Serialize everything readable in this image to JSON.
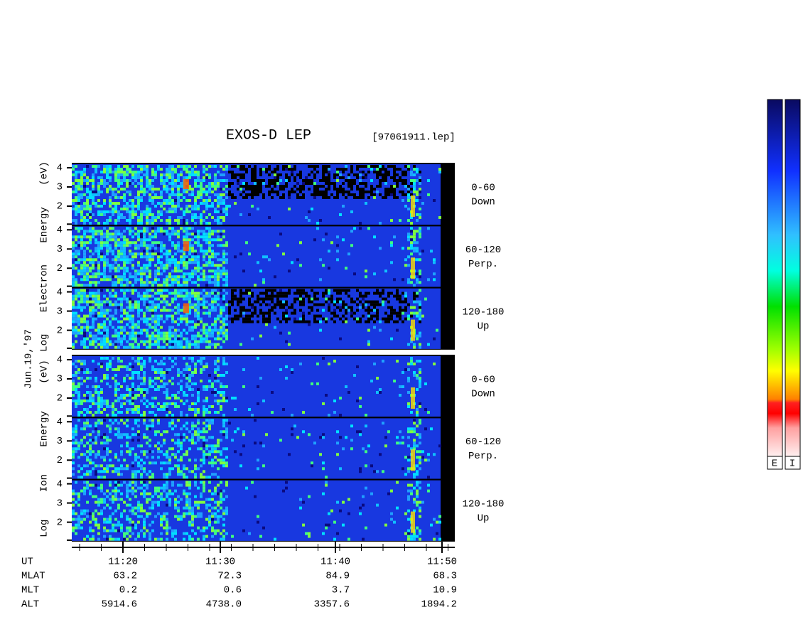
{
  "header": {
    "title": "EXOS-D LEP",
    "file": "[97061911.lep]"
  },
  "date": "Jun.19,'97",
  "groups": [
    {
      "axis_label": "Log Electron Energy (eV)",
      "panels": [
        {
          "angle": "0-60",
          "direction": "Down",
          "ticks": [
            "4",
            "3",
            "2"
          ]
        },
        {
          "angle": "60-120",
          "direction": "Perp.",
          "ticks": [
            "4",
            "3",
            "2"
          ]
        },
        {
          "angle": "120-180",
          "direction": "Up",
          "ticks": [
            "4",
            "3",
            "2"
          ]
        }
      ]
    },
    {
      "axis_label": "Log Ion Energy (eV)",
      "panels": [
        {
          "angle": "0-60",
          "direction": "Down",
          "ticks": [
            "4",
            "3",
            "2"
          ]
        },
        {
          "angle": "60-120",
          "direction": "Perp.",
          "ticks": [
            "4",
            "3",
            "2"
          ]
        },
        {
          "angle": "120-180",
          "direction": "Up",
          "ticks": [
            "4",
            "3",
            "2"
          ]
        }
      ]
    }
  ],
  "footer": {
    "rows": [
      {
        "name": "UT",
        "values": [
          "11:20",
          "11:30",
          "11:40",
          "11:50"
        ]
      },
      {
        "name": "MLAT",
        "values": [
          "63.2",
          "72.3",
          "84.9",
          "68.3"
        ]
      },
      {
        "name": "MLT",
        "values": [
          "0.2",
          "0.6",
          "3.7",
          "10.9"
        ]
      },
      {
        "name": "ALT",
        "values": [
          "5914.6",
          "4738.0",
          "3357.6",
          "1894.2"
        ]
      }
    ]
  },
  "colorbars": [
    "E",
    "I"
  ]
}
